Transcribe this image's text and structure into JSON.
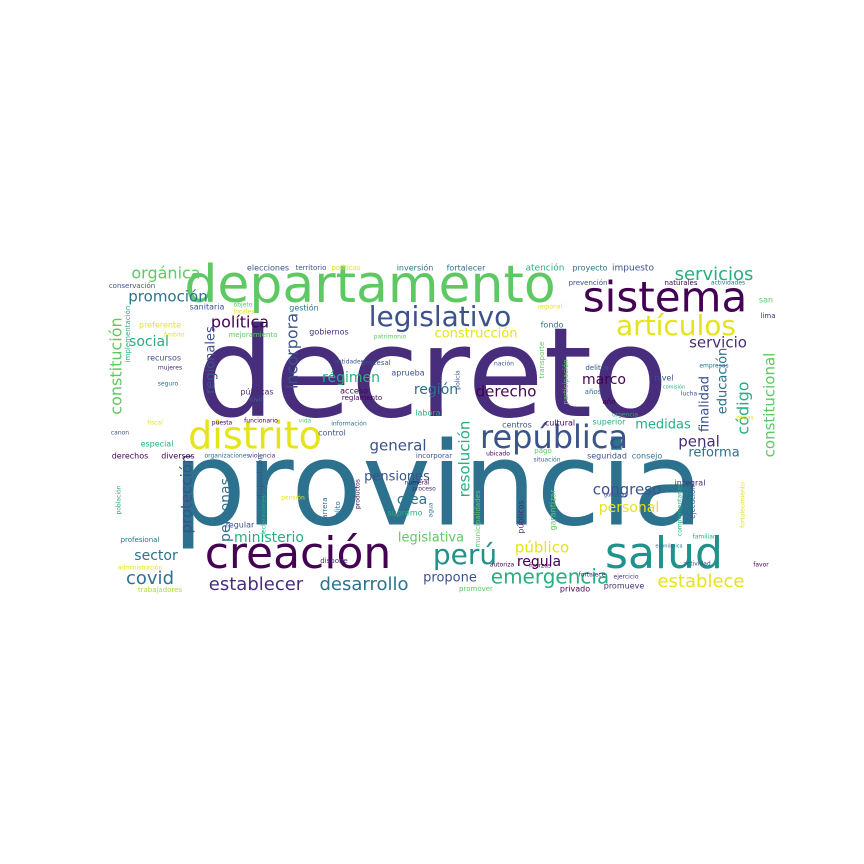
{
  "palette": {
    "dark_purple": "#440154",
    "indigo": "#472d7b",
    "blue": "#3b528b",
    "slate": "#2c728e",
    "teal": "#21918c",
    "green_teal": "#28ae80",
    "green": "#5ec962",
    "lime": "#addc30",
    "yellow": "#e5e419"
  },
  "words": [
    {
      "text": "decreto",
      "color": "#472d7b"
    },
    {
      "text": "provincia",
      "color": "#2c728e"
    },
    {
      "text": "departamento",
      "color": "#5ec962"
    },
    {
      "text": "sistema",
      "color": "#440154"
    },
    {
      "text": "creación",
      "color": "#440154"
    },
    {
      "text": "salud",
      "color": "#21918c"
    },
    {
      "text": "distrito",
      "color": "#e5e419"
    },
    {
      "text": "república",
      "color": "#3b528b"
    },
    {
      "text": "legislativo",
      "color": "#3b528b"
    },
    {
      "text": "artículos",
      "color": "#e5e419"
    },
    {
      "text": "perú",
      "color": "#21918c"
    },
    {
      "text": "emergencia",
      "color": "#28ae80"
    },
    {
      "text": "establece",
      "color": "#e5e419"
    },
    {
      "text": "establecer",
      "color": "#472d7b"
    },
    {
      "text": "desarrollo",
      "color": "#2c728e"
    },
    {
      "text": "covid",
      "color": "#2c728e"
    },
    {
      "text": "servicios",
      "color": "#28ae80"
    },
    {
      "text": "orgánica",
      "color": "#5ec962"
    },
    {
      "text": "promoción",
      "color": "#2c728e"
    },
    {
      "text": "política",
      "color": "#440154"
    },
    {
      "text": "constitución",
      "color": "#5ec962"
    },
    {
      "text": "construcción",
      "color": "#e5e419"
    },
    {
      "text": "servicio",
      "color": "#472d7b"
    },
    {
      "text": "constitucional",
      "color": "#5ec962"
    },
    {
      "text": "régimen",
      "color": "#28ae80"
    },
    {
      "text": "regionales",
      "color": "#3b528b"
    },
    {
      "text": "incorpora",
      "color": "#3b528b"
    },
    {
      "text": "región",
      "color": "#2c728e"
    },
    {
      "text": "derecho",
      "color": "#440154"
    },
    {
      "text": "social",
      "color": "#28ae80"
    },
    {
      "text": "general",
      "color": "#3b528b"
    },
    {
      "text": "pensiones",
      "color": "#3b528b"
    },
    {
      "text": "marco",
      "color": "#440154"
    },
    {
      "text": "educación",
      "color": "#2c728e"
    },
    {
      "text": "código",
      "color": "#28ae80"
    },
    {
      "text": "finalidad",
      "color": "#3b528b"
    },
    {
      "text": "medidas",
      "color": "#28ae80"
    },
    {
      "text": "penal",
      "color": "#472d7b"
    },
    {
      "text": "reforma",
      "color": "#2c728e"
    },
    {
      "text": "resolución",
      "color": "#28ae80"
    },
    {
      "text": "protección",
      "color": "#3b528b"
    },
    {
      "text": "personas",
      "color": "#2c728e"
    },
    {
      "text": "crea",
      "color": "#2c728e"
    },
    {
      "text": "congreso",
      "color": "#3b528b"
    },
    {
      "text": "personal",
      "color": "#e5e419"
    },
    {
      "text": "ministerio",
      "color": "#28ae80"
    },
    {
      "text": "legislativa",
      "color": "#5ec962"
    },
    {
      "text": "público",
      "color": "#e5e419"
    },
    {
      "text": "sector",
      "color": "#2c728e"
    },
    {
      "text": "regula",
      "color": "#440154"
    },
    {
      "text": "propone",
      "color": "#3b528b"
    },
    {
      "text": "elecciones",
      "color": "#3b528b"
    },
    {
      "text": "territorio",
      "color": "#3b528b"
    },
    {
      "text": "políticas",
      "color": "#e5e419"
    },
    {
      "text": "inversión",
      "color": "#2c728e"
    },
    {
      "text": "fortalecer",
      "color": "#2c728e"
    },
    {
      "text": "atención",
      "color": "#28ae80"
    },
    {
      "text": "proyecto",
      "color": "#2c728e"
    },
    {
      "text": "impuesto",
      "color": "#3b528b"
    },
    {
      "text": "conservación",
      "color": "#3b528b"
    },
    {
      "text": "prevención",
      "color": "#3b528b"
    },
    {
      "text": "naturales",
      "color": "#440154"
    },
    {
      "text": "actividades",
      "color": "#2c728e"
    },
    {
      "text": "sanitaria",
      "color": "#3b528b"
    },
    {
      "text": "gestión",
      "color": "#2c728e"
    },
    {
      "text": "objeto",
      "color": "#5ec962"
    },
    {
      "text": "locales",
      "color": "#e5e419"
    },
    {
      "text": "regional",
      "color": "#e5e419"
    },
    {
      "text": "san",
      "color": "#5ec962"
    },
    {
      "text": "lima",
      "color": "#472d7b"
    },
    {
      "text": "preferente",
      "color": "#e5e419"
    },
    {
      "text": "ámbito",
      "color": "#e5e419"
    },
    {
      "text": "implementación",
      "color": "#28ae80"
    },
    {
      "text": "recursos",
      "color": "#3b528b"
    },
    {
      "text": "mejoramiento",
      "color": "#5ec962"
    },
    {
      "text": "gobiernos",
      "color": "#472d7b"
    },
    {
      "text": "patrimonio",
      "color": "#5ec962"
    },
    {
      "text": "fondo",
      "color": "#2c728e"
    },
    {
      "text": "empresas",
      "color": "#2c728e"
    },
    {
      "text": "entidades",
      "color": "#3b528b"
    },
    {
      "text": "procesal",
      "color": "#3b528b"
    },
    {
      "text": "policía",
      "color": "#3b528b"
    },
    {
      "text": "nación",
      "color": "#3b528b"
    },
    {
      "text": "transporte",
      "color": "#5ec962"
    },
    {
      "text": "delitos",
      "color": "#3b528b"
    },
    {
      "text": "mujeres",
      "color": "#472d7b"
    },
    {
      "text": "seguro",
      "color": "#2c728e"
    },
    {
      "text": "públicas",
      "color": "#472d7b"
    },
    {
      "text": "civil",
      "color": "#2c728e"
    },
    {
      "text": "acceso",
      "color": "#440154"
    },
    {
      "text": "reglamento",
      "color": "#440154"
    },
    {
      "text": "aprueba",
      "color": "#3b528b"
    },
    {
      "text": "participación",
      "color": "#5ec962"
    },
    {
      "text": "años",
      "color": "#2c728e"
    },
    {
      "text": "año",
      "color": "#440154"
    },
    {
      "text": "nivel",
      "color": "#3b528b"
    },
    {
      "text": "comisión",
      "color": "#28ae80"
    },
    {
      "text": "lucha",
      "color": "#3b528b"
    },
    {
      "text": "urgencia",
      "color": "#28ae80"
    },
    {
      "text": "fiscal",
      "color": "#e5e419"
    },
    {
      "text": "vida",
      "color": "#5ec962"
    },
    {
      "text": "información",
      "color": "#2c728e"
    },
    {
      "text": "laboral",
      "color": "#28ae80"
    },
    {
      "text": "zonas",
      "color": "#e5e419"
    },
    {
      "text": "especial",
      "color": "#28ae80"
    },
    {
      "text": "canon",
      "color": "#3b528b"
    },
    {
      "text": "puesta",
      "color": "#440154"
    },
    {
      "text": "funcionario",
      "color": "#440154"
    },
    {
      "text": "control",
      "color": "#3b528b"
    },
    {
      "text": "incorporar",
      "color": "#3b528b"
    },
    {
      "text": "centros",
      "color": "#3b528b"
    },
    {
      "text": "cultural",
      "color": "#440154"
    },
    {
      "text": "superior",
      "color": "#28ae80"
    },
    {
      "text": "derechos",
      "color": "#440154"
    },
    {
      "text": "diversos",
      "color": "#440154"
    },
    {
      "text": "organizaciones",
      "color": "#2c728e"
    },
    {
      "text": "violencia",
      "color": "#472d7b"
    },
    {
      "text": "pago",
      "color": "#5ec962"
    },
    {
      "text": "ubicado",
      "color": "#440154"
    },
    {
      "text": "situación",
      "color": "#2c728e"
    },
    {
      "text": "seguridad",
      "color": "#3b528b"
    },
    {
      "text": "consejo",
      "color": "#2c728e"
    },
    {
      "text": "integral",
      "color": "#472d7b"
    },
    {
      "text": "gobierno",
      "color": "#3b528b"
    },
    {
      "text": "disposición",
      "color": "#3b528b"
    },
    {
      "text": "pensión",
      "color": "#e5e419"
    },
    {
      "text": "productos",
      "color": "#440154"
    },
    {
      "text": "numeral",
      "color": "#440154"
    },
    {
      "text": "proceso",
      "color": "#472d7b"
    },
    {
      "text": "población",
      "color": "#28ae80"
    },
    {
      "text": "declaraciones",
      "color": "#28ae80"
    },
    {
      "text": "regular",
      "color": "#3b528b"
    },
    {
      "text": "carrera",
      "color": "#2c728e"
    },
    {
      "text": "delito",
      "color": "#2c728e"
    },
    {
      "text": "supremo",
      "color": "#28ae80"
    },
    {
      "text": "agua",
      "color": "#2c728e"
    },
    {
      "text": "municipalidades",
      "color": "#5ec962"
    },
    {
      "text": "públicos",
      "color": "#472d7b"
    },
    {
      "text": "garantizar",
      "color": "#5ec962"
    },
    {
      "text": "complementarias",
      "color": "#28ae80"
    },
    {
      "text": "ejecución",
      "color": "#3b528b"
    },
    {
      "text": "fortalecimiento",
      "color": "#e5e419"
    },
    {
      "text": "profesional",
      "color": "#2c728e"
    },
    {
      "text": "dispone",
      "color": "#472d7b"
    },
    {
      "text": "autoriza",
      "color": "#440154"
    },
    {
      "text": "fuerzas",
      "color": "#440154"
    },
    {
      "text": "fortalece",
      "color": "#472d7b"
    },
    {
      "text": "familiar",
      "color": "#28ae80"
    },
    {
      "text": "favor",
      "color": "#440154"
    },
    {
      "text": "económica",
      "color": "#2c728e"
    },
    {
      "text": "ejercicio",
      "color": "#472d7b"
    },
    {
      "text": "administración",
      "color": "#e5e419"
    },
    {
      "text": "trabajadores",
      "color": "#addc30"
    },
    {
      "text": "promover",
      "color": "#5ec962"
    },
    {
      "text": "privado",
      "color": "#440154"
    },
    {
      "text": "promueve",
      "color": "#472d7b"
    },
    {
      "text": "actividad",
      "color": "#3b528b"
    }
  ]
}
